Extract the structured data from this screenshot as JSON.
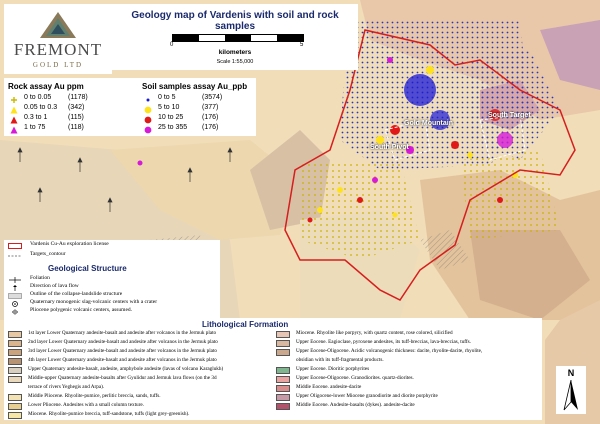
{
  "logo": {
    "name": "FREMONT",
    "sub": "GOLD LTD"
  },
  "title": "Geology map of Vardenis with soil and rock samples",
  "scale": {
    "zero": "0",
    "end": "5",
    "unit": "kilometers",
    "ratio": "Scale 1:55,000"
  },
  "rock_assay": {
    "title": "Rock assay Au ppm",
    "items": [
      {
        "range": "0 to 0.05",
        "count": "(1178)",
        "color": "#c8b800",
        "shape": "plus"
      },
      {
        "range": "0.05 to 0.3",
        "count": "(342)",
        "color": "#ffe21a",
        "shape": "triangle"
      },
      {
        "range": "0.3 to 1",
        "count": "(115)",
        "color": "#e01818",
        "shape": "triangle"
      },
      {
        "range": "1 to 75",
        "count": "(118)",
        "color": "#d81ad8",
        "shape": "triangle"
      }
    ]
  },
  "soil_assay": {
    "title": "Soil samples assay Au_ppb",
    "items": [
      {
        "range": "0 to 5",
        "count": "(3574)",
        "color": "#1a1ad8",
        "shape": "dot"
      },
      {
        "range": "5 to 10",
        "count": "(377)",
        "color": "#ffe21a",
        "shape": "circle"
      },
      {
        "range": "10 to 25",
        "count": "(176)",
        "color": "#e01818",
        "shape": "circle"
      },
      {
        "range": "25 to 355",
        "count": "(176)",
        "color": "#d81ad8",
        "shape": "circle"
      }
    ]
  },
  "structure": {
    "license_label": "Vardenis Cu-Au exploration license",
    "targets_label": "Targets_contour",
    "title": "Geological Structure",
    "items": [
      {
        "label": "Foliation",
        "sym": "foliation"
      },
      {
        "label": "Direction of lava flow",
        "sym": "arrow"
      },
      {
        "label": "Outline of the collapse-landslide structure",
        "sym": "hatch"
      },
      {
        "label": "Quaternary monogenic slag-volcanic centers with a crater",
        "sym": "crater"
      },
      {
        "label": "Pliocene polygenic volcanic centers, assumed.",
        "sym": "polygenic"
      }
    ]
  },
  "lithology": {
    "title": "Lithological Formation",
    "left": [
      {
        "label": "1st layer Lower Quaternary andesite-basalt and andesite after volcanos in the Jermuk plato",
        "color": "#e9c9a3"
      },
      {
        "label": "2nd layer Lower Quaternary andesite-basalt and andesite after volcanos in the Jermuk plato",
        "color": "#dab58d"
      },
      {
        "label": "3rd layer Lower Quaternary andesite-basalt and andesite after volcanos in the Jermuk plato",
        "color": "#c9a37d"
      },
      {
        "label": "4th layer Lower Quaternary andesite-basalt and andesite after volcanos in the Jermuk plato",
        "color": "#b79373"
      },
      {
        "label": "Upper Quaternary andesite-basalt, andesite, amphybole andesite (lavas of volcano Karaglukh)",
        "color": "#d8cfc0"
      },
      {
        "label": "Middle-upper Quaternary andesite-basalts after Gyulidur and Jermuk lava flows (on the 3d",
        "color": "#ead8bc"
      },
      {
        "label": "terrace of rivers Yeghegis and Arpa).",
        "color": ""
      },
      {
        "label": "Middle Pliocene. Rhyolite-pumice, perlitic breccia, sands, tuffs.",
        "color": "#f3e3b4"
      },
      {
        "label": "Lower Pliocene. Andesites with a small column texture.",
        "color": "#e7cf92"
      },
      {
        "label": "Miocene. Rhyolite-pumice breccia, tuff-sandstone, tuffs (light grey-greenish).",
        "color": "#f6e7a8"
      }
    ],
    "right": [
      {
        "label": "Miocene. Rhyolite like porpyry, with quartz content, rose colored, silicified",
        "color": "#e6c5b5"
      },
      {
        "label": "Upper Eocene. Eagioclase, pyroxene andesites, its tuff-breccias, lava-breccias, tuffs.",
        "color": "#d9b8a1"
      },
      {
        "label": "Upper Eocene-Oligocene. Acidic volcanogenic thickness: dacite, rhyolite-dacite, rhyolite,",
        "color": "#caa88d"
      },
      {
        "label": "obsidian with its tuff-fragmental products.",
        "color": ""
      },
      {
        "label": "Upper Eocene. Dioritic porphyrites",
        "color": "#7fb58f"
      },
      {
        "label": "Upper Eocene-Oligocene. Granodiorites. quartz-diorites.",
        "color": "#e9a3a0"
      },
      {
        "label": "Middle Eocene. andesite-dacite",
        "color": "#d98c8c"
      },
      {
        "label": "Upper Oligocene-lower Miocene granodiorite and diorite porphyrite",
        "color": "#c79aa7"
      },
      {
        "label": "Middle Eocene. Andesite-basalts (dykes). andesite-dacite",
        "color": "#b3536b"
      }
    ]
  },
  "map_labels": [
    "Gold Mountain",
    "South Pivot",
    "South Target"
  ],
  "north": "N"
}
